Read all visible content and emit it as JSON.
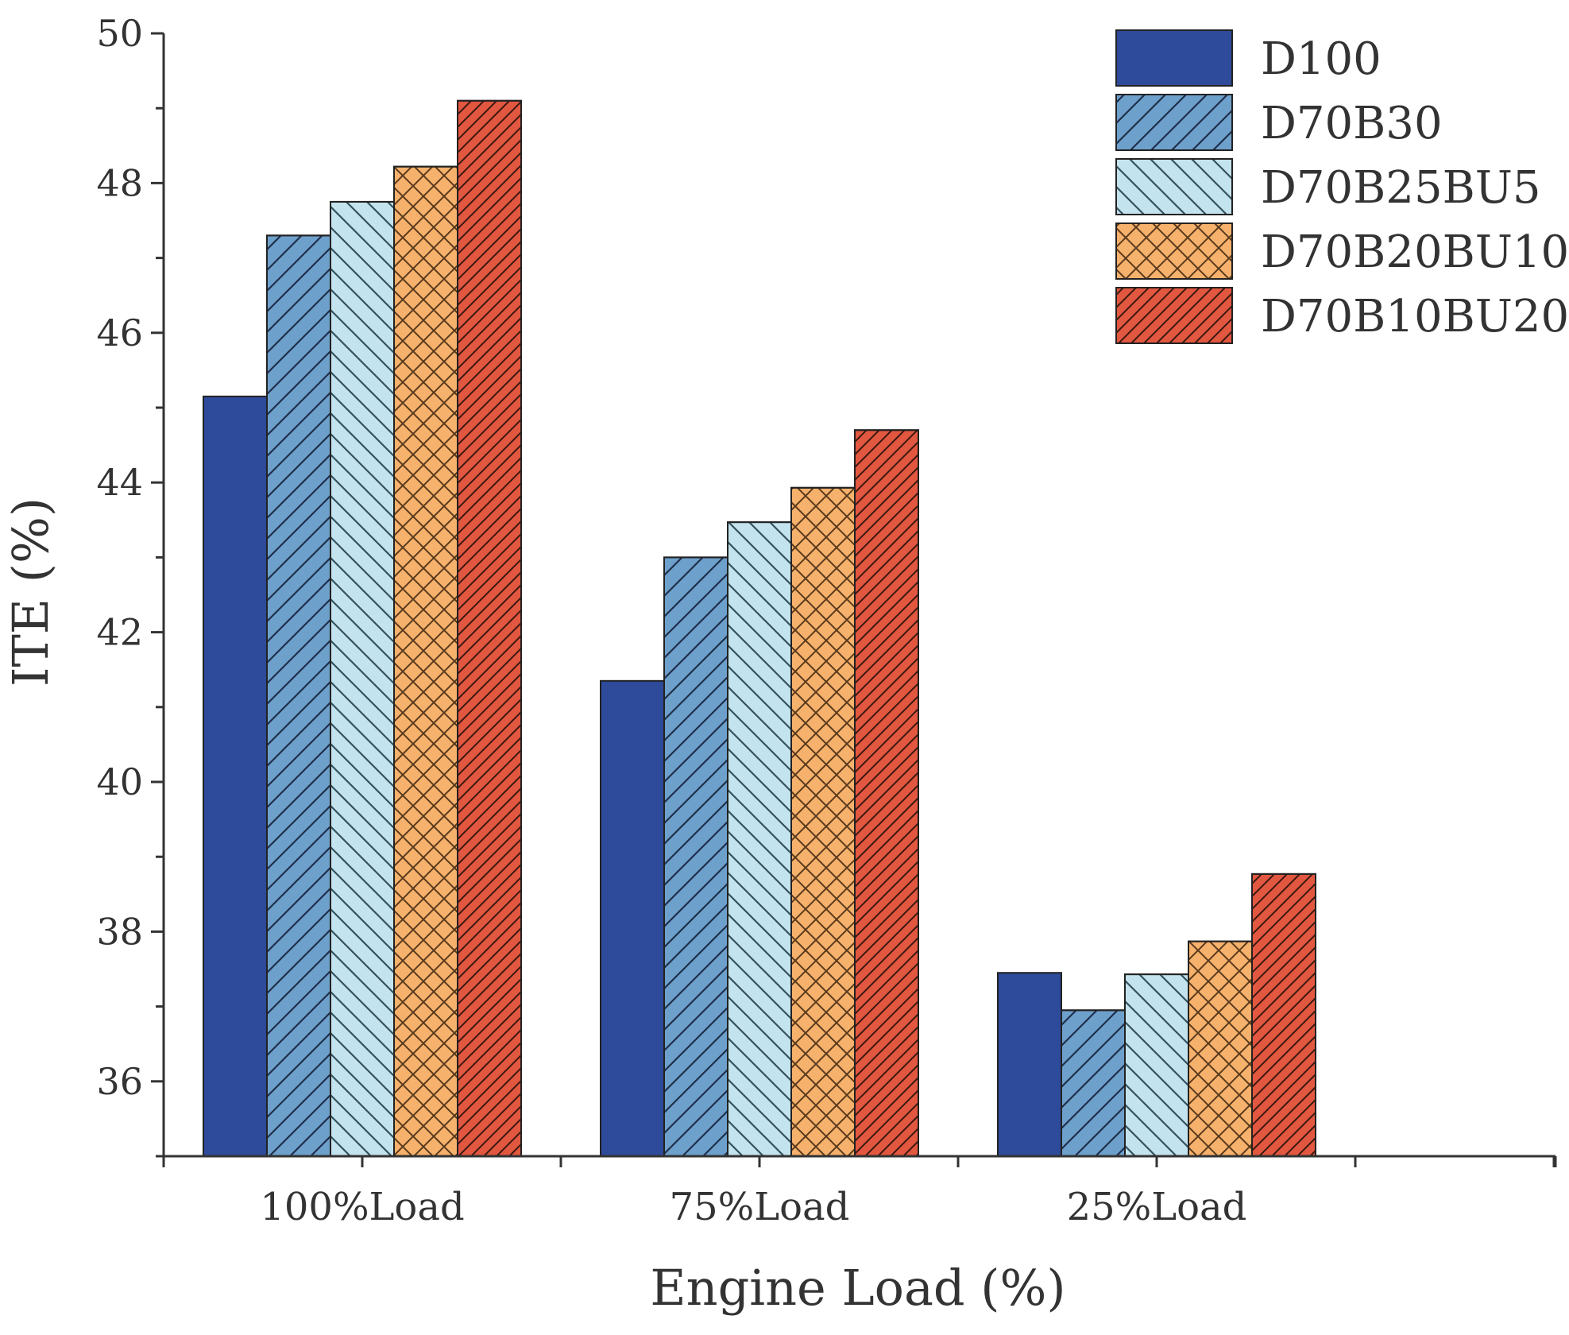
{
  "chart_data": {
    "type": "bar",
    "title": "",
    "xlabel": "Engine Load (%)",
    "ylabel": "ITE (%)",
    "categories": [
      "100%Load",
      "75%Load",
      "25%Load"
    ],
    "ylim": [
      35,
      50
    ],
    "yticks": [
      36,
      38,
      40,
      42,
      44,
      46,
      48,
      50
    ],
    "grid": false,
    "legend_position": "top-right",
    "series": [
      {
        "name": "D100",
        "values": [
          45.15,
          41.35,
          37.45
        ],
        "color": "#2e4a9a",
        "pattern": "solid"
      },
      {
        "name": "D70B30",
        "values": [
          47.3,
          43.0,
          36.95
        ],
        "color": "#6ea0cc",
        "pattern": "diagonal-up"
      },
      {
        "name": "D70B25BU5",
        "values": [
          47.75,
          43.47,
          37.43
        ],
        "color": "#c3e3ee",
        "pattern": "diagonal-down"
      },
      {
        "name": "D70B20BU10",
        "values": [
          48.22,
          43.93,
          37.87
        ],
        "color": "#f6b16c",
        "pattern": "crosshatch"
      },
      {
        "name": "D70B10BU20",
        "values": [
          49.1,
          44.7,
          38.77
        ],
        "color": "#e2573f",
        "pattern": "dense-diagonal"
      }
    ]
  }
}
